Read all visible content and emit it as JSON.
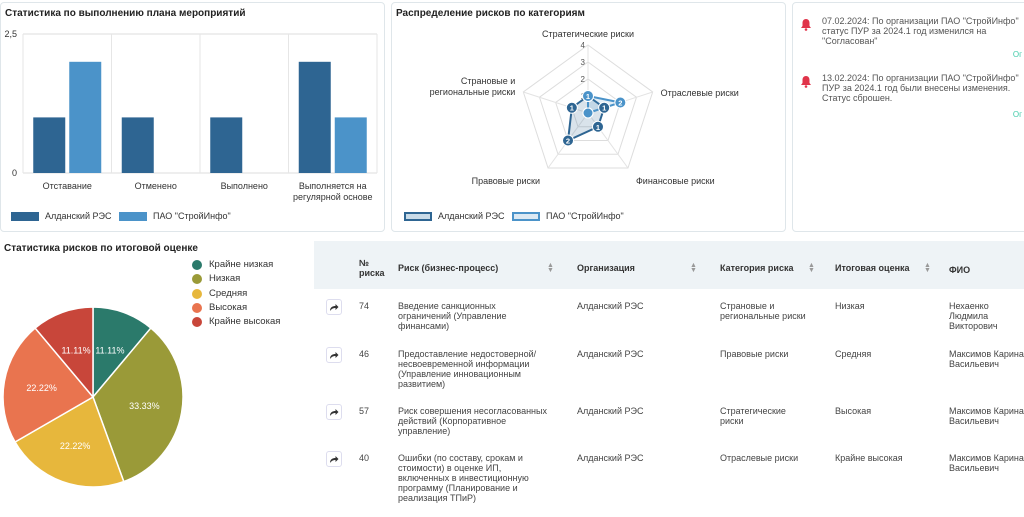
{
  "bar_panel": {
    "title": "Статистика по выполнению плана мероприятий",
    "legend": [
      {
        "label": "Алданский РЭС",
        "color": "#2e6592"
      },
      {
        "label": "ПАО \"СтройИнфо\"",
        "color": "#4b93c9"
      }
    ]
  },
  "radar_panel": {
    "title": "Распределение рисков по категориям",
    "legend": [
      {
        "label": "Алданский РЭС",
        "color": "#2e6592"
      },
      {
        "label": "ПАО \"СтройИнфо\"",
        "color": "#4b93c9"
      }
    ]
  },
  "notifications": [
    {
      "text": "07.02.2024: По организации ПАО \"СтройИнфо\" статус ПУР за 2024.1 год изменился на \"Согласован\"",
      "more": "Ог"
    },
    {
      "text": "13.02.2024: По организации ПАО \"СтройИнфо\" ПУР за 2024.1 год были внесены изменения. Статус сброшен.",
      "more": "Ог"
    }
  ],
  "pie_panel": {
    "title": "Статистика рисков по итоговой оценке"
  },
  "table": {
    "headers": {
      "num": "№ риска",
      "risk": "Риск (бизнес-процесс)",
      "org": "Организация",
      "category": "Категория риска",
      "score": "Итоговая оценка",
      "fio": "ФИО"
    },
    "rows": [
      {
        "num": "74",
        "risk": "Введение санкционных ограничений (Управление финансами)",
        "org": "Алданский РЭС",
        "category": "Страновые и региональные риски",
        "score": "Низкая",
        "fio": "Нехаенко Людмила Викторович"
      },
      {
        "num": "46",
        "risk": "Предоставление недостоверной/ несвоевременной информации (Управление инновационным развитием)",
        "org": "Алданский РЭС",
        "category": "Правовые риски",
        "score": "Средняя",
        "fio": "Максимов Карина Васильевич"
      },
      {
        "num": "57",
        "risk": "Риск совершения несогласованных действий (Корпоративное управление)",
        "org": "Алданский РЭС",
        "category": "Стратегические риски",
        "score": "Высокая",
        "fio": "Максимов Карина Васильевич"
      },
      {
        "num": "40",
        "risk": "Ошибки (по составу, срокам и стоимости) в оценке ИП, включенных в инвестиционную программу (Планирование и реализация ТПиР)",
        "org": "Алданский РЭС",
        "category": "Отраслевые риски",
        "score": "Крайне высокая",
        "fio": "Максимов Карина Васильевич"
      }
    ]
  },
  "chart_data": [
    {
      "type": "bar",
      "title": "Статистика по выполнению плана мероприятий",
      "categories": [
        "Отставание",
        "Отменено",
        "Выполнено",
        "Выполняется на регулярной основе"
      ],
      "series": [
        {
          "name": "Алданский РЭС",
          "values": [
            1,
            1,
            1,
            2
          ],
          "color": "#2e6592"
        },
        {
          "name": "ПАО \"СтройИнфо\"",
          "values": [
            2,
            0,
            0,
            1
          ],
          "color": "#4b93c9"
        }
      ],
      "yticks": [
        "0",
        "2,5"
      ],
      "ylim": [
        0,
        2.5
      ]
    },
    {
      "type": "radar",
      "title": "Распределение рисков по категориям",
      "axes": [
        "Стратегические риски",
        "Отраслевые риски",
        "Финансовые риски",
        "Правовые риски",
        "Страновые и региональные риски"
      ],
      "rticks": [
        "1",
        "2",
        "3",
        "4"
      ],
      "rlim": [
        0,
        4
      ],
      "series": [
        {
          "name": "Алданский РЭС",
          "values": [
            1,
            1,
            1,
            2,
            1
          ],
          "color": "#2e6592"
        },
        {
          "name": "ПАО \"СтройИнфо\"",
          "values": [
            1,
            2,
            0,
            0,
            0
          ],
          "color": "#4b93c9"
        }
      ]
    },
    {
      "type": "pie",
      "title": "Статистика рисков по итоговой оценке",
      "slices": [
        {
          "label": "Крайне низкая",
          "value": 11.11,
          "text": "11.11%",
          "color": "#2b7a6b"
        },
        {
          "label": "Низкая",
          "value": 33.33,
          "text": "33.33%",
          "color": "#9a9a38"
        },
        {
          "label": "Средняя",
          "value": 22.22,
          "text": "22.22%",
          "color": "#e7b73c"
        },
        {
          "label": "Высокая",
          "value": 22.22,
          "text": "22.22%",
          "color": "#e9744f"
        },
        {
          "label": "Крайне высокая",
          "value": 11.11,
          "text": "11.11%",
          "color": "#c8463a"
        }
      ]
    }
  ]
}
